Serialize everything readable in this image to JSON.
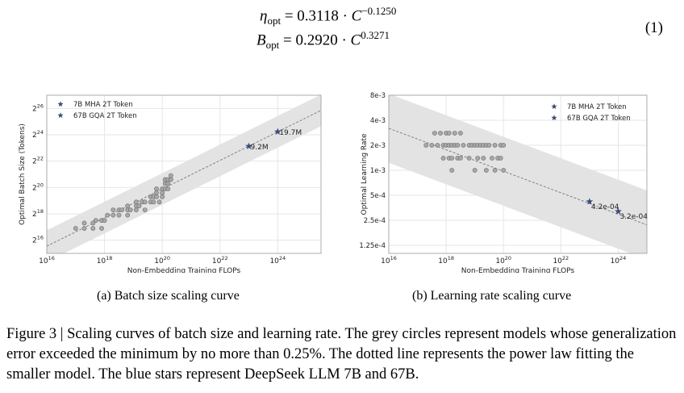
{
  "equations": {
    "eta": {
      "lhs": "η",
      "lhs_sub": "opt",
      "eq": " = 0.3118 · ",
      "var": "C",
      "exp": "−0.1250"
    },
    "batch": {
      "lhs": "B",
      "lhs_sub": "opt",
      "eq": " = 0.2920 · ",
      "var": "C",
      "exp": "0.3271"
    },
    "number": "(1)"
  },
  "captions": {
    "a": "(a)  Batch size scaling curve",
    "b": "(b)  Learning rate scaling curve",
    "figure": "Figure 3 | Scaling curves of batch size and learning rate. The grey circles represent models whose generalization error exceeded the minimum by no more than 0.25%. The dotted line represents the power law fitting the smaller model. The blue stars represent DeepSeek LLM 7B and 67B."
  },
  "colors": {
    "star": "#3a4a7a",
    "circle_fill": "#a8a8a8",
    "band": "#e3e3e3",
    "grid": "#e6e6e6"
  },
  "chart_data": [
    {
      "type": "scatter",
      "xlabel": "Non-Embedding Training FLOPs",
      "ylabel": "Optimal Batch Size (Tokens)",
      "x_scale": "log",
      "y_scale": "log2",
      "xlim_exp": [
        16,
        25.5
      ],
      "ylim_exp": [
        15,
        27
      ],
      "x_ticks": [
        {
          "exp": 16,
          "label": "10",
          "sup": "16"
        },
        {
          "exp": 18,
          "label": "10",
          "sup": "18"
        },
        {
          "exp": 20,
          "label": "10",
          "sup": "20"
        },
        {
          "exp": 22,
          "label": "10",
          "sup": "22"
        },
        {
          "exp": 24,
          "label": "10",
          "sup": "24"
        }
      ],
      "y_ticks": [
        {
          "exp": 16,
          "label": "2",
          "sup": "16"
        },
        {
          "exp": 18,
          "label": "2",
          "sup": "18"
        },
        {
          "exp": 20,
          "label": "2",
          "sup": "20"
        },
        {
          "exp": 22,
          "label": "2",
          "sup": "22"
        },
        {
          "exp": 24,
          "label": "2",
          "sup": "24"
        },
        {
          "exp": 26,
          "label": "2",
          "sup": "26"
        }
      ],
      "legend": {
        "placement": "top-left",
        "entries": [
          "7B MHA 2T Token",
          "67B GQA 2T Token"
        ]
      },
      "fit_line": {
        "x_exp": [
          16,
          25.5
        ],
        "y_exp": [
          15.55,
          25.85
        ]
      },
      "band_halfwidth_exp": 1.2,
      "grey_points": [
        [
          17.0,
          16.9
        ],
        [
          17.3,
          16.9
        ],
        [
          17.3,
          17.3
        ],
        [
          17.6,
          16.9
        ],
        [
          17.6,
          17.3
        ],
        [
          17.7,
          17.5
        ],
        [
          17.9,
          16.9
        ],
        [
          17.9,
          17.5
        ],
        [
          18.0,
          17.5
        ],
        [
          18.1,
          17.9
        ],
        [
          18.3,
          17.9
        ],
        [
          18.3,
          18.3
        ],
        [
          18.5,
          17.9
        ],
        [
          18.5,
          18.3
        ],
        [
          18.6,
          18.3
        ],
        [
          18.8,
          17.9
        ],
        [
          18.8,
          18.3
        ],
        [
          18.8,
          18.6
        ],
        [
          18.9,
          18.3
        ],
        [
          19.1,
          18.3
        ],
        [
          19.1,
          18.6
        ],
        [
          19.1,
          18.9
        ],
        [
          19.2,
          18.6
        ],
        [
          19.3,
          18.9
        ],
        [
          19.4,
          18.3
        ],
        [
          19.4,
          18.9
        ],
        [
          19.6,
          18.9
        ],
        [
          19.6,
          19.3
        ],
        [
          19.7,
          19.3
        ],
        [
          19.7,
          18.9
        ],
        [
          19.8,
          19.3
        ],
        [
          19.8,
          19.6
        ],
        [
          19.8,
          19.9
        ],
        [
          19.9,
          18.9
        ],
        [
          20.0,
          19.3
        ],
        [
          20.0,
          19.6
        ],
        [
          20.0,
          19.9
        ],
        [
          20.1,
          19.9
        ],
        [
          20.1,
          20.3
        ],
        [
          20.1,
          20.6
        ],
        [
          20.2,
          19.9
        ],
        [
          20.2,
          20.3
        ],
        [
          20.2,
          20.6
        ],
        [
          20.3,
          20.6
        ],
        [
          20.3,
          20.9
        ]
      ],
      "stars": [
        {
          "name": "7B MHA 2T Token",
          "x_exp": 23.0,
          "y_exp": 23.13,
          "label": "9.2M"
        },
        {
          "name": "67B GQA 2T Token",
          "x_exp": 24.0,
          "y_exp": 24.23,
          "label": "19.7M"
        }
      ]
    },
    {
      "type": "scatter",
      "xlabel": "Non-Embedding Training FLOPs",
      "ylabel": "Optimal Learning Rate",
      "x_scale": "log",
      "y_scale": "log",
      "xlim_exp": [
        16,
        25.0
      ],
      "ylim_lr": [
        0.0001,
        0.008
      ],
      "x_ticks": [
        {
          "exp": 16,
          "label": "10",
          "sup": "16"
        },
        {
          "exp": 18,
          "label": "10",
          "sup": "18"
        },
        {
          "exp": 20,
          "label": "10",
          "sup": "20"
        },
        {
          "exp": 22,
          "label": "10",
          "sup": "22"
        },
        {
          "exp": 24,
          "label": "10",
          "sup": "24"
        }
      ],
      "y_ticks": [
        {
          "v": 0.008,
          "label": "8e-3"
        },
        {
          "v": 0.004,
          "label": "4e-3"
        },
        {
          "v": 0.002,
          "label": "2e-3"
        },
        {
          "v": 0.001,
          "label": "1e-3"
        },
        {
          "v": 0.0005,
          "label": "5e-4"
        },
        {
          "v": 0.00025,
          "label": "2.5e-4"
        },
        {
          "v": 0.000125,
          "label": "1.25e-4"
        }
      ],
      "legend": {
        "placement": "top-right",
        "entries": [
          "7B MHA 2T Token",
          "67B GQA 2T Token"
        ]
      },
      "fit_line": {
        "x_exp": [
          16,
          25.0
        ],
        "y_lr": [
          0.0032,
          0.00022
        ]
      },
      "band_factor": 2.6,
      "grey_points": [
        [
          17.3,
          0.002
        ],
        [
          17.5,
          0.002
        ],
        [
          17.6,
          0.0028
        ],
        [
          17.7,
          0.002
        ],
        [
          17.8,
          0.0028
        ],
        [
          17.9,
          0.002
        ],
        [
          17.9,
          0.0014
        ],
        [
          18.0,
          0.0028
        ],
        [
          18.0,
          0.002
        ],
        [
          18.1,
          0.0014
        ],
        [
          18.1,
          0.002
        ],
        [
          18.1,
          0.0028
        ],
        [
          18.2,
          0.002
        ],
        [
          18.2,
          0.0014
        ],
        [
          18.2,
          0.001
        ],
        [
          18.3,
          0.002
        ],
        [
          18.3,
          0.0028
        ],
        [
          18.4,
          0.0014
        ],
        [
          18.4,
          0.002
        ],
        [
          18.5,
          0.0028
        ],
        [
          18.5,
          0.0014
        ],
        [
          18.6,
          0.002
        ],
        [
          18.8,
          0.002
        ],
        [
          18.8,
          0.0014
        ],
        [
          18.9,
          0.002
        ],
        [
          19.0,
          0.002
        ],
        [
          19.0,
          0.001
        ],
        [
          19.1,
          0.0014
        ],
        [
          19.1,
          0.002
        ],
        [
          19.2,
          0.002
        ],
        [
          19.3,
          0.002
        ],
        [
          19.3,
          0.0014
        ],
        [
          19.4,
          0.002
        ],
        [
          19.4,
          0.001
        ],
        [
          19.5,
          0.002
        ],
        [
          19.6,
          0.0014
        ],
        [
          19.7,
          0.002
        ],
        [
          19.7,
          0.001
        ],
        [
          19.8,
          0.0014
        ],
        [
          19.9,
          0.002
        ],
        [
          19.9,
          0.0014
        ],
        [
          20.0,
          0.002
        ],
        [
          20.0,
          0.001
        ]
      ],
      "stars": [
        {
          "name": "7B MHA 2T Token",
          "x_exp": 23.0,
          "y_lr": 0.00042,
          "label": "4.2e-04"
        },
        {
          "name": "67B GQA 2T Token",
          "x_exp": 24.0,
          "y_lr": 0.00032,
          "label": "3.2e-04"
        }
      ]
    }
  ]
}
